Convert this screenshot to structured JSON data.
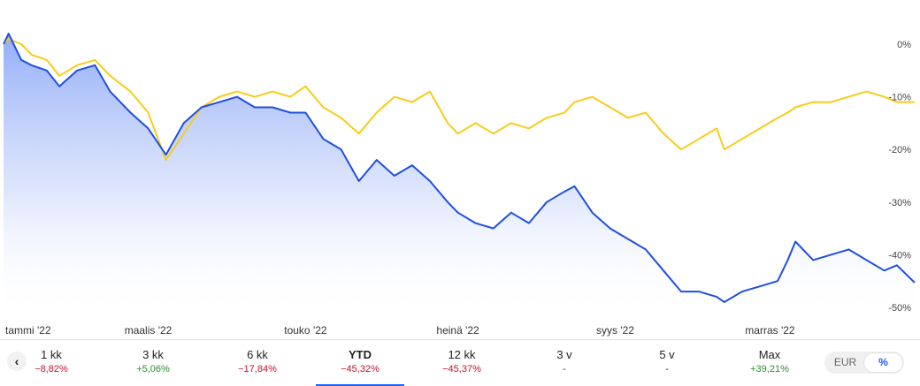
{
  "chart_data": {
    "type": "line",
    "y_unit": "%",
    "ylim": [
      -52,
      2
    ],
    "yticks": [
      {
        "value": 0,
        "label": "0%"
      },
      {
        "value": -10,
        "label": "-10%"
      },
      {
        "value": -20,
        "label": "-20%"
      },
      {
        "value": -30,
        "label": "-30%"
      },
      {
        "value": -40,
        "label": "-40%"
      },
      {
        "value": -50,
        "label": "-50%"
      }
    ],
    "xticks": [
      {
        "date": "2022-01-03",
        "label": "tammi '22"
      },
      {
        "date": "2022-03-01",
        "label": "maalis '22"
      },
      {
        "date": "2022-05-02",
        "label": "touko '22"
      },
      {
        "date": "2022-07-01",
        "label": "heinä '22"
      },
      {
        "date": "2022-09-01",
        "label": "syys '22"
      },
      {
        "date": "2022-11-01",
        "label": "marras '22"
      }
    ],
    "grid": false,
    "series": [
      {
        "color": "#1f4fe0",
        "fill": true,
        "points": [
          [
            "2022-01-03",
            0
          ],
          [
            "2022-01-05",
            2
          ],
          [
            "2022-01-10",
            -3
          ],
          [
            "2022-01-14",
            -4
          ],
          [
            "2022-01-20",
            -5
          ],
          [
            "2022-01-25",
            -8
          ],
          [
            "2022-02-01",
            -5
          ],
          [
            "2022-02-08",
            -4
          ],
          [
            "2022-02-14",
            -9
          ],
          [
            "2022-02-22",
            -13
          ],
          [
            "2022-03-01",
            -16
          ],
          [
            "2022-03-08",
            -21
          ],
          [
            "2022-03-15",
            -15
          ],
          [
            "2022-03-22",
            -12
          ],
          [
            "2022-03-29",
            -11
          ],
          [
            "2022-04-05",
            -10
          ],
          [
            "2022-04-12",
            -12
          ],
          [
            "2022-04-19",
            -12
          ],
          [
            "2022-04-26",
            -13
          ],
          [
            "2022-05-02",
            -13
          ],
          [
            "2022-05-09",
            -18
          ],
          [
            "2022-05-16",
            -20
          ],
          [
            "2022-05-23",
            -26
          ],
          [
            "2022-05-30",
            -22
          ],
          [
            "2022-06-06",
            -25
          ],
          [
            "2022-06-13",
            -23
          ],
          [
            "2022-06-20",
            -26
          ],
          [
            "2022-06-27",
            -30
          ],
          [
            "2022-07-01",
            -32
          ],
          [
            "2022-07-08",
            -34
          ],
          [
            "2022-07-15",
            -35
          ],
          [
            "2022-07-22",
            -32
          ],
          [
            "2022-07-29",
            -34
          ],
          [
            "2022-08-05",
            -30
          ],
          [
            "2022-08-12",
            -28
          ],
          [
            "2022-08-16",
            -27
          ],
          [
            "2022-08-23",
            -32
          ],
          [
            "2022-08-30",
            -35
          ],
          [
            "2022-09-06",
            -37
          ],
          [
            "2022-09-13",
            -39
          ],
          [
            "2022-09-20",
            -43
          ],
          [
            "2022-09-27",
            -47
          ],
          [
            "2022-10-04",
            -47
          ],
          [
            "2022-10-11",
            -48
          ],
          [
            "2022-10-14",
            -49
          ],
          [
            "2022-10-21",
            -47
          ],
          [
            "2022-10-28",
            -46
          ],
          [
            "2022-11-04",
            -45
          ],
          [
            "2022-11-08",
            -41
          ],
          [
            "2022-11-11",
            -37.5
          ],
          [
            "2022-11-18",
            -41
          ],
          [
            "2022-11-25",
            -40
          ],
          [
            "2022-12-02",
            -39
          ],
          [
            "2022-12-09",
            -41
          ],
          [
            "2022-12-16",
            -43
          ],
          [
            "2022-12-21",
            -42
          ],
          [
            "2022-12-28",
            -45.3
          ]
        ]
      },
      {
        "color": "#f7cc1a",
        "fill": false,
        "points": [
          [
            "2022-01-03",
            0
          ],
          [
            "2022-01-05",
            1
          ],
          [
            "2022-01-10",
            0
          ],
          [
            "2022-01-14",
            -2
          ],
          [
            "2022-01-20",
            -3
          ],
          [
            "2022-01-25",
            -6
          ],
          [
            "2022-02-01",
            -4
          ],
          [
            "2022-02-08",
            -3
          ],
          [
            "2022-02-14",
            -6
          ],
          [
            "2022-02-22",
            -9
          ],
          [
            "2022-03-01",
            -13
          ],
          [
            "2022-03-08",
            -22
          ],
          [
            "2022-03-15",
            -17
          ],
          [
            "2022-03-22",
            -12
          ],
          [
            "2022-03-29",
            -10
          ],
          [
            "2022-04-05",
            -9
          ],
          [
            "2022-04-12",
            -10
          ],
          [
            "2022-04-19",
            -9
          ],
          [
            "2022-04-26",
            -10
          ],
          [
            "2022-05-02",
            -8
          ],
          [
            "2022-05-09",
            -12
          ],
          [
            "2022-05-16",
            -14
          ],
          [
            "2022-05-23",
            -17
          ],
          [
            "2022-05-30",
            -13
          ],
          [
            "2022-06-06",
            -10
          ],
          [
            "2022-06-13",
            -11
          ],
          [
            "2022-06-20",
            -9
          ],
          [
            "2022-06-27",
            -15
          ],
          [
            "2022-07-01",
            -17
          ],
          [
            "2022-07-08",
            -15
          ],
          [
            "2022-07-15",
            -17
          ],
          [
            "2022-07-22",
            -15
          ],
          [
            "2022-07-29",
            -16
          ],
          [
            "2022-08-05",
            -14
          ],
          [
            "2022-08-12",
            -13
          ],
          [
            "2022-08-16",
            -11
          ],
          [
            "2022-08-23",
            -10
          ],
          [
            "2022-08-30",
            -12
          ],
          [
            "2022-09-06",
            -14
          ],
          [
            "2022-09-13",
            -13
          ],
          [
            "2022-09-20",
            -17
          ],
          [
            "2022-09-27",
            -20
          ],
          [
            "2022-10-04",
            -18
          ],
          [
            "2022-10-11",
            -16
          ],
          [
            "2022-10-14",
            -20
          ],
          [
            "2022-10-21",
            -18
          ],
          [
            "2022-10-28",
            -16
          ],
          [
            "2022-11-04",
            -14
          ],
          [
            "2022-11-08",
            -13
          ],
          [
            "2022-11-11",
            -12
          ],
          [
            "2022-11-18",
            -11
          ],
          [
            "2022-11-25",
            -11
          ],
          [
            "2022-12-02",
            -10
          ],
          [
            "2022-12-09",
            -9
          ],
          [
            "2022-12-16",
            -10
          ],
          [
            "2022-12-21",
            -11
          ],
          [
            "2022-12-28",
            -11
          ]
        ]
      }
    ]
  },
  "range_selector": {
    "items": [
      {
        "label": "1 kk",
        "change": "−8,82%",
        "sign": "neg"
      },
      {
        "label": "3 kk",
        "change": "+5,06%",
        "sign": "pos"
      },
      {
        "label": "6 kk",
        "change": "−17,84%",
        "sign": "neg"
      },
      {
        "label": "YTD",
        "change": "−45,32%",
        "sign": "neg",
        "active": true
      },
      {
        "label": "12 kk",
        "change": "−45,37%",
        "sign": "neg"
      },
      {
        "label": "3 v",
        "change": "-",
        "sign": "neu"
      },
      {
        "label": "5 v",
        "change": "-",
        "sign": "neu"
      },
      {
        "label": "Max",
        "change": "+39,21%",
        "sign": "pos"
      }
    ]
  },
  "toggle": {
    "options": [
      "EUR",
      "%"
    ],
    "selected": "%"
  },
  "colors": {
    "accent": "#1f5ff5",
    "negative": "#c8102e",
    "positive": "#2e8b2e"
  }
}
